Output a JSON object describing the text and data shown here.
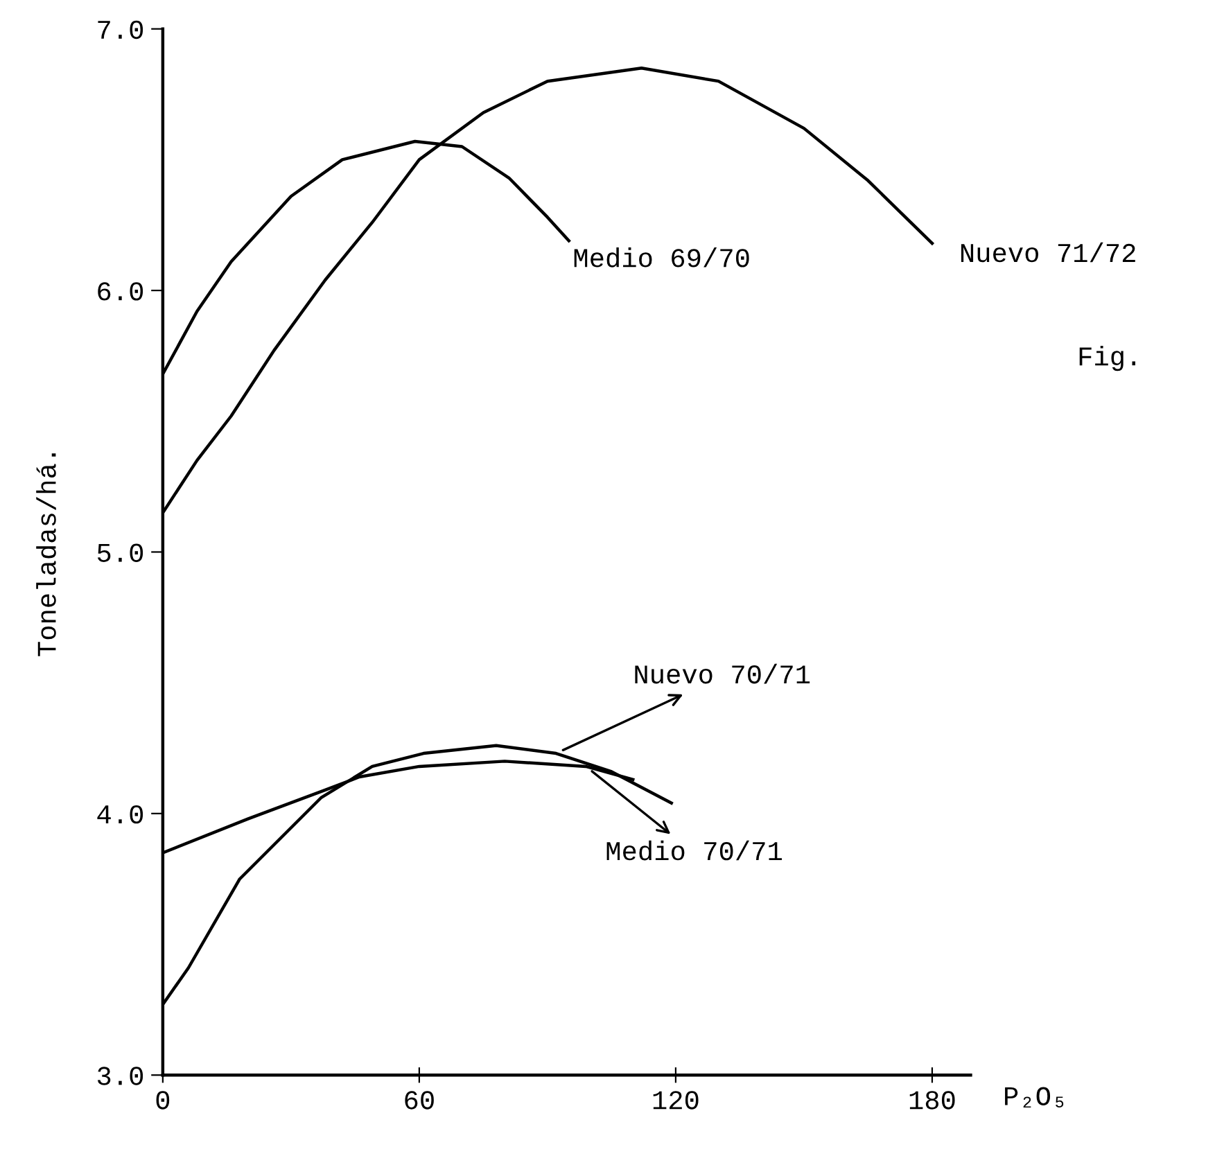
{
  "chart_data": {
    "type": "line",
    "xlabel": "P₂O₅",
    "ylabel": "Toneladas/há.",
    "xlim": [
      0,
      189
    ],
    "xticks": [
      0,
      60,
      120,
      180
    ],
    "ylim": [
      3.0,
      7.0
    ],
    "yticks": [
      {
        "value": 3,
        "label": "3.0"
      },
      {
        "value": 4,
        "label": "4.0"
      },
      {
        "value": 5,
        "label": "5.0"
      },
      {
        "value": 6,
        "label": "6.0"
      },
      {
        "value": 7,
        "label": "7.0"
      }
    ],
    "grid": false,
    "marker": "none",
    "line_style": "solid",
    "annotations": [
      "Fig."
    ],
    "series": [
      {
        "name": "Medio 69/70",
        "color": "#000000",
        "x": [
          0,
          8,
          16,
          30,
          42,
          59,
          70,
          81,
          90,
          95
        ],
        "values": [
          5.68,
          5.92,
          6.11,
          6.36,
          6.5,
          6.57,
          6.55,
          6.43,
          6.28,
          6.19
        ]
      },
      {
        "name": "Nuevo 71/72",
        "color": "#000000",
        "x": [
          0,
          8,
          16,
          26,
          38,
          49,
          60,
          75,
          90,
          112,
          130,
          150,
          165,
          180
        ],
        "values": [
          5.15,
          5.35,
          5.52,
          5.77,
          6.04,
          6.26,
          6.5,
          6.68,
          6.8,
          6.85,
          6.8,
          6.62,
          6.42,
          6.18
        ]
      },
      {
        "name": "Nuevo 70/71",
        "color": "#000000",
        "x": [
          0,
          6,
          18,
          37,
          49,
          61,
          78,
          92,
          105,
          119
        ],
        "values": [
          3.27,
          3.41,
          3.75,
          4.06,
          4.18,
          4.23,
          4.26,
          4.23,
          4.16,
          4.04
        ]
      },
      {
        "name": "Medio 70/71",
        "color": "#000000",
        "x": [
          0,
          20,
          38,
          46,
          60,
          80,
          99,
          110
        ],
        "values": [
          3.85,
          3.98,
          4.09,
          4.14,
          4.18,
          4.2,
          4.18,
          4.13
        ]
      }
    ]
  }
}
